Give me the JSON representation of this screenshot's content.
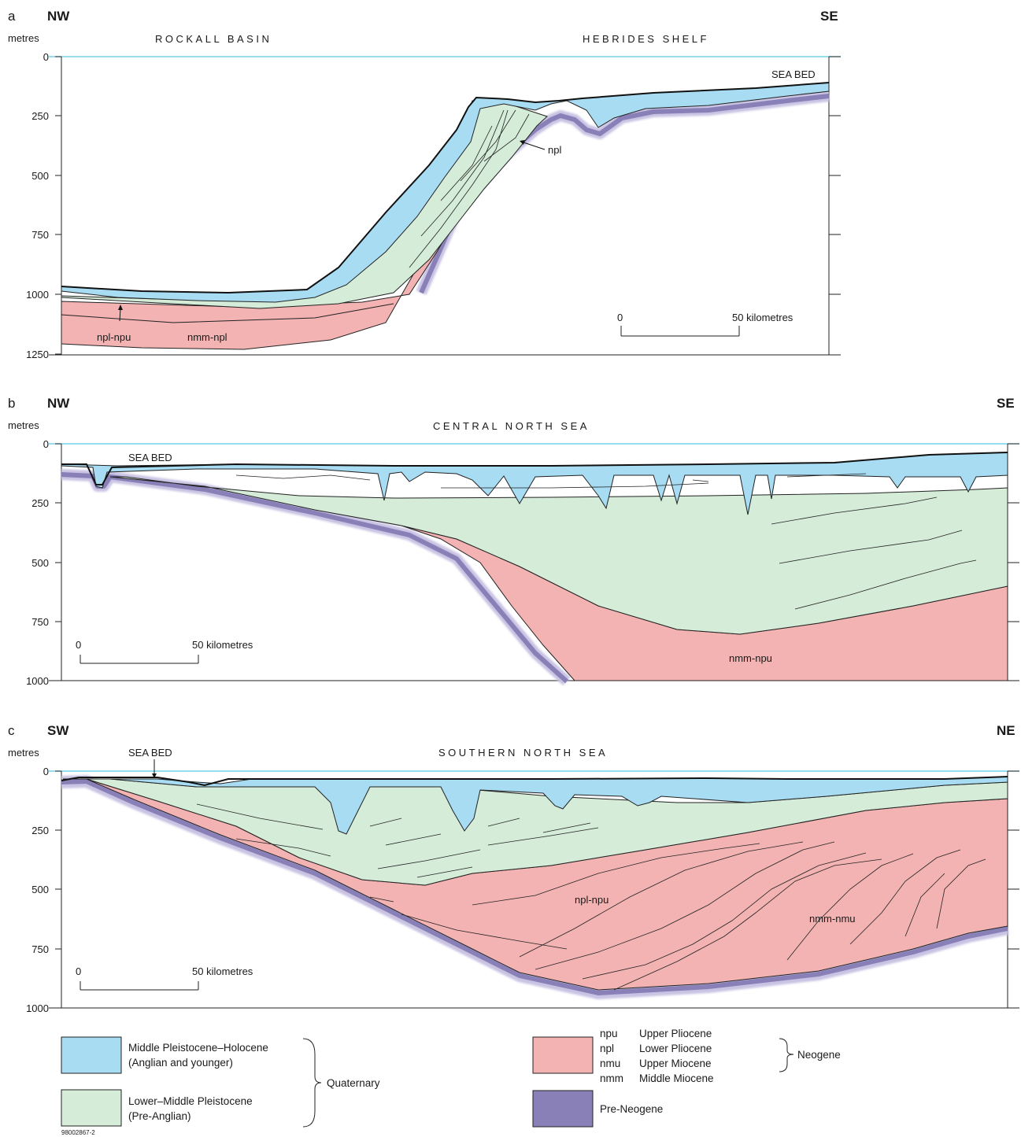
{
  "panels": {
    "a": {
      "letter": "a",
      "dir_left": "NW",
      "dir_right": "SE",
      "units": "metres",
      "region_left": "ROCKALL BASIN",
      "region_right": "HEBRIDES SHELF",
      "sea_bed": "SEA BED",
      "y_ticks": [
        "0",
        "250",
        "500",
        "750",
        "1000",
        "1250"
      ],
      "scale_start": "0",
      "scale_end": "50 kilometres",
      "labels": {
        "npl": "npl",
        "npl_npu": "npl-npu",
        "nmm_npl": "nmm-npl"
      }
    },
    "b": {
      "letter": "b",
      "dir_left": "NW",
      "dir_right": "SE",
      "units": "metres",
      "region": "CENTRAL NORTH SEA",
      "sea_bed": "SEA BED",
      "y_ticks": [
        "0",
        "250",
        "500",
        "750",
        "1000"
      ],
      "scale_start": "0",
      "scale_end": "50 kilometres",
      "labels": {
        "nmm_npu": "nmm-npu"
      }
    },
    "c": {
      "letter": "c",
      "dir_left": "SW",
      "dir_right": "NE",
      "units": "metres",
      "region": "SOUTHERN NORTH SEA",
      "sea_bed": "SEA BED",
      "y_ticks": [
        "0",
        "250",
        "500",
        "750",
        "1000"
      ],
      "scale_start": "0",
      "scale_end": "50 kilometres",
      "labels": {
        "npl_npu": "npl-npu",
        "nmm_nmu": "nmm-nmu"
      }
    }
  },
  "legend": {
    "mid_pleistocene": {
      "line1": "Middle Pleistocene–Holocene",
      "line2": "(Anglian and younger)",
      "color": "#a7dcf3"
    },
    "low_pleistocene": {
      "line1": "Lower–Middle Pleistocene",
      "line2": "(Pre-Anglian)",
      "color": "#d5ecd8"
    },
    "quaternary": "Quaternary",
    "neogene_codes": [
      "npu",
      "npl",
      "nmu",
      "nmm"
    ],
    "neogene_names": [
      "Upper Pliocene",
      "Lower Pliocene",
      "Upper Miocene",
      "Middle Miocene"
    ],
    "neogene_color": "#f4b3b3",
    "neogene": "Neogene",
    "pre_neogene": {
      "label": "Pre-Neogene",
      "color": "#8a80b8"
    }
  },
  "figure_id": "98002867-2"
}
